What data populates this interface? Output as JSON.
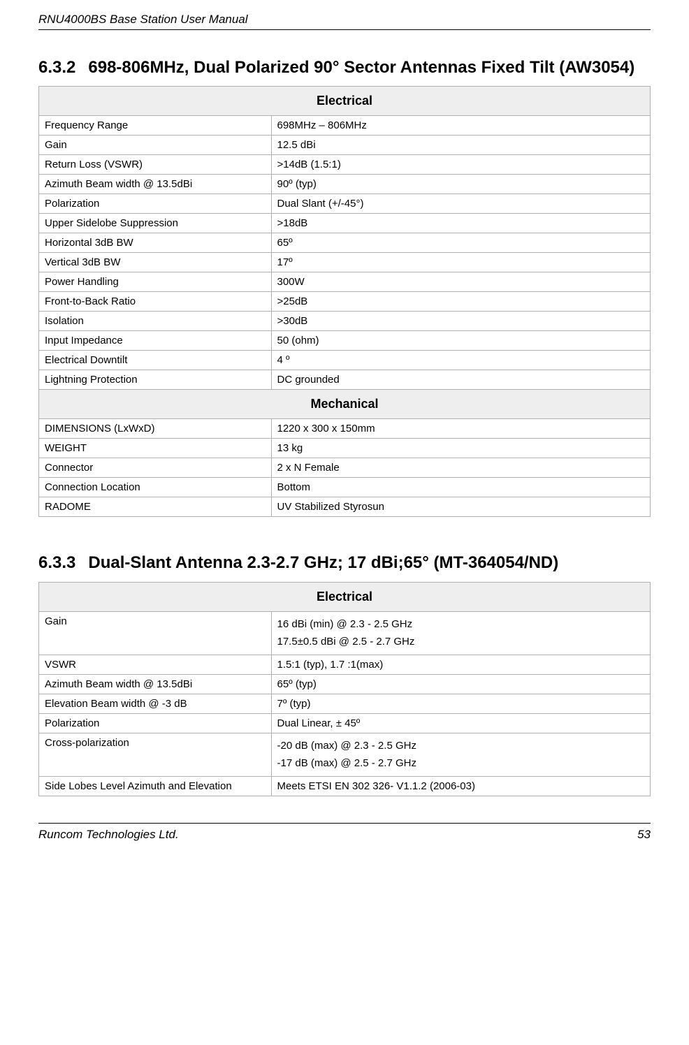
{
  "doc_title": "RNU4000BS Base Station User Manual",
  "footer": {
    "company": "Runcom Technologies Ltd.",
    "page": "53"
  },
  "sections": [
    {
      "number": "6.3.2",
      "title": "698-806MHz, Dual Polarized 90° Sector Antennas Fixed Tilt (AW3054)",
      "groups": [
        {
          "header": "Electrical",
          "rows": [
            {
              "label": "Frequency Range",
              "value": "698MHz – 806MHz"
            },
            {
              "label": "Gain",
              "value": "12.5 dBi"
            },
            {
              "label": "Return Loss (VSWR)",
              "value": ">14dB (1.5:1)"
            },
            {
              "label": "Azimuth Beam width @ 13.5dBi",
              "value": "90º (typ)"
            },
            {
              "label": "Polarization",
              "value": "Dual Slant (+/-45°)"
            },
            {
              "label": "Upper Sidelobe Suppression",
              "value": ">18dB"
            },
            {
              "label": "Horizontal 3dB BW",
              "value": "65º"
            },
            {
              "label": "Vertical 3dB BW",
              "value": "17º"
            },
            {
              "label": "Power Handling",
              "value": "300W"
            },
            {
              "label": "Front-to-Back Ratio",
              "value": ">25dB"
            },
            {
              "label": "Isolation",
              "value": ">30dB"
            },
            {
              "label": "Input Impedance",
              "value": "50 (ohm)"
            },
            {
              "label": "Electrical Downtilt",
              "value": "4 º"
            },
            {
              "label": "Lightning Protection",
              "value": "DC grounded"
            }
          ]
        },
        {
          "header": "Mechanical",
          "rows": [
            {
              "label": "DIMENSIONS (LxWxD)",
              "value": "1220 x 300 x 150mm"
            },
            {
              "label": "WEIGHT",
              "value": "13 kg"
            },
            {
              "label": "Connector",
              "value": "2 x N Female"
            },
            {
              "label": "Connection Location",
              "value": "Bottom"
            },
            {
              "label": "RADOME",
              "value": "UV Stabilized Styrosun"
            }
          ]
        }
      ]
    },
    {
      "number": "6.3.3",
      "title": "Dual-Slant Antenna 2.3-2.7 GHz; 17 dBi;65° (MT-364054/ND)",
      "groups": [
        {
          "header": "Electrical",
          "rows": [
            {
              "label": "Gain",
              "value": "16 dBi (min) @ 2.3 - 2.5 GHz\n17.5±0.5 dBi @ 2.5 - 2.7 GHz"
            },
            {
              "label": "VSWR",
              "value": "1.5:1 (typ), 1.7 :1(max)"
            },
            {
              "label": "Azimuth Beam width @ 13.5dBi",
              "value": "65º (typ)"
            },
            {
              "label": "Elevation Beam width @ -3 dB",
              "value": "7º (typ)"
            },
            {
              "label": "Polarization",
              "value": "Dual Linear, ± 45º"
            },
            {
              "label": " Cross-polarization",
              "value": "-20 dB (max) @ 2.3 - 2.5 GHz\n-17 dB (max) @ 2.5 - 2.7 GHz"
            },
            {
              "label": "Side Lobes Level Azimuth and Elevation",
              "value": "Meets ETSI EN 302 326- V1.1.2 (2006-03)"
            }
          ]
        }
      ]
    }
  ]
}
